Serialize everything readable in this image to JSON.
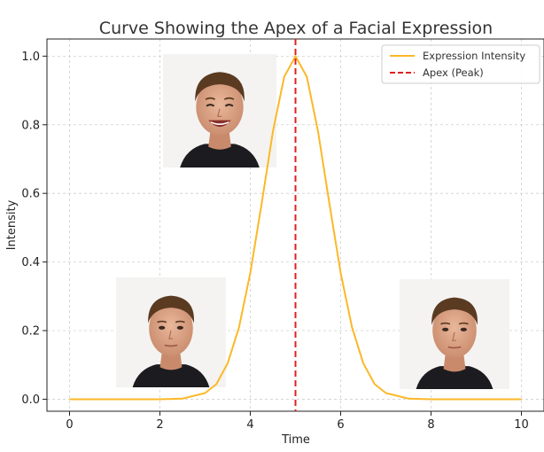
{
  "chart_data": {
    "type": "line",
    "title": "Curve Showing the Apex of a Facial Expression",
    "xlabel": "Time",
    "ylabel": "Intensity",
    "xlim": [
      -0.5,
      10.5
    ],
    "ylim": [
      -0.035,
      1.05
    ],
    "xticks": [
      0,
      2,
      4,
      6,
      8,
      10
    ],
    "xtick_labels": [
      "0",
      "2",
      "4",
      "6",
      "8",
      "10"
    ],
    "yticks": [
      0.0,
      0.2,
      0.4,
      0.6,
      0.8,
      1.0
    ],
    "ytick_labels": [
      "0.0",
      "0.2",
      "0.4",
      "0.6",
      "0.8",
      "1.0"
    ],
    "grid": true,
    "legend_position": "top-right",
    "series": [
      {
        "name": "Expression Intensity",
        "style": "solid",
        "color": "#fbb828",
        "x": [
          0,
          0.5,
          1,
          1.5,
          2,
          2.5,
          3,
          3.25,
          3.5,
          3.75,
          4,
          4.25,
          4.5,
          4.75,
          5,
          5.25,
          5.5,
          5.75,
          6,
          6.25,
          6.5,
          6.75,
          7,
          7.5,
          8,
          8.5,
          9,
          9.5,
          10
        ],
        "y": [
          0.0,
          0.0,
          0.0,
          0.0,
          0.0,
          0.002,
          0.018,
          0.044,
          0.105,
          0.21,
          0.368,
          0.57,
          0.78,
          0.94,
          1.0,
          0.94,
          0.78,
          0.57,
          0.368,
          0.21,
          0.105,
          0.044,
          0.018,
          0.002,
          0.0,
          0.0,
          0.0,
          0.0,
          0.0
        ]
      }
    ],
    "vlines": [
      {
        "name": "Apex (Peak)",
        "x": 5,
        "style": "dashed",
        "color": "#e02020"
      }
    ],
    "images": [
      {
        "name": "neutral-face-onset",
        "x": 3,
        "y": 0.2
      },
      {
        "name": "smiling-face-apex",
        "x": 4,
        "y": 0.85
      },
      {
        "name": "neutral-face-offset",
        "x": 8,
        "y": 0.2
      }
    ]
  }
}
